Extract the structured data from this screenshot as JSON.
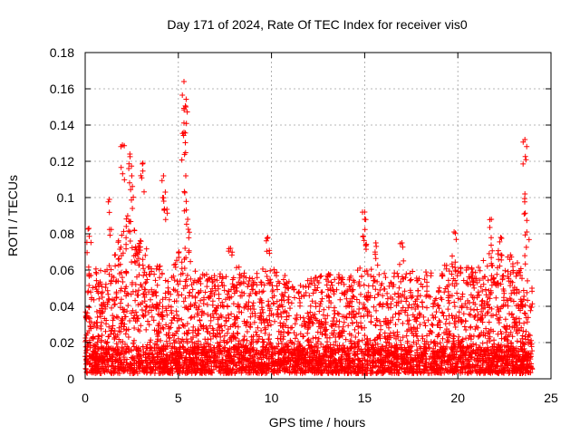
{
  "chart_data": {
    "type": "scatter",
    "title": "Day 171 of 2024, Rate Of TEC Index for receiver vis0",
    "xlabel": "GPS time / hours",
    "ylabel": "ROTI / TECUs",
    "xlim": [
      0,
      25
    ],
    "ylim": [
      0,
      0.18
    ],
    "x_ticks": [
      0,
      5,
      10,
      15,
      20,
      25
    ],
    "x_tick_labels": [
      "0",
      "5",
      "10",
      "15",
      "20",
      "25"
    ],
    "y_ticks": [
      0,
      0.02,
      0.04,
      0.06,
      0.08,
      0.1,
      0.12,
      0.14,
      0.16,
      0.18
    ],
    "y_tick_labels": [
      "0",
      "0.02",
      "0.04",
      "0.06",
      "0.08",
      "0.1",
      "0.12",
      "0.14",
      "0.16",
      "0.18"
    ],
    "grid": true,
    "marker": "+",
    "color": "#ff0000",
    "data_x_range": [
      0,
      24
    ],
    "series": [
      {
        "name": "ROTI",
        "notable_points": [
          {
            "x": 0.2,
            "y": 0.083
          },
          {
            "x": 1.3,
            "y": 0.099
          },
          {
            "x": 2.0,
            "y": 0.129
          },
          {
            "x": 2.4,
            "y": 0.124
          },
          {
            "x": 2.5,
            "y": 0.112
          },
          {
            "x": 3.1,
            "y": 0.119
          },
          {
            "x": 4.2,
            "y": 0.112
          },
          {
            "x": 4.3,
            "y": 0.103
          },
          {
            "x": 5.3,
            "y": 0.164
          },
          {
            "x": 5.4,
            "y": 0.15
          },
          {
            "x": 5.3,
            "y": 0.136
          },
          {
            "x": 5.4,
            "y": 0.112
          },
          {
            "x": 5.5,
            "y": 0.088
          },
          {
            "x": 7.8,
            "y": 0.072
          },
          {
            "x": 9.8,
            "y": 0.078
          },
          {
            "x": 15.0,
            "y": 0.092
          },
          {
            "x": 15.0,
            "y": 0.088
          },
          {
            "x": 15.6,
            "y": 0.075
          },
          {
            "x": 17.0,
            "y": 0.075
          },
          {
            "x": 19.8,
            "y": 0.081
          },
          {
            "x": 21.8,
            "y": 0.088
          },
          {
            "x": 22.3,
            "y": 0.078
          },
          {
            "x": 23.6,
            "y": 0.132
          },
          {
            "x": 23.6,
            "y": 0.102
          },
          {
            "x": 23.7,
            "y": 0.081
          }
        ],
        "envelope": [
          {
            "x": 0,
            "upper": 0.06
          },
          {
            "x": 0.5,
            "upper": 0.06
          },
          {
            "x": 1,
            "upper": 0.055
          },
          {
            "x": 1.5,
            "upper": 0.065
          },
          {
            "x": 2,
            "upper": 0.085
          },
          {
            "x": 2.5,
            "upper": 0.095
          },
          {
            "x": 3,
            "upper": 0.075
          },
          {
            "x": 3.5,
            "upper": 0.065
          },
          {
            "x": 4,
            "upper": 0.06
          },
          {
            "x": 4.5,
            "upper": 0.05
          },
          {
            "x": 5,
            "upper": 0.07
          },
          {
            "x": 5.5,
            "upper": 0.07
          },
          {
            "x": 6,
            "upper": 0.055
          },
          {
            "x": 7,
            "upper": 0.055
          },
          {
            "x": 8,
            "upper": 0.06
          },
          {
            "x": 9,
            "upper": 0.055
          },
          {
            "x": 10,
            "upper": 0.06
          },
          {
            "x": 11,
            "upper": 0.052
          },
          {
            "x": 12,
            "upper": 0.052
          },
          {
            "x": 13,
            "upper": 0.055
          },
          {
            "x": 14,
            "upper": 0.055
          },
          {
            "x": 15,
            "upper": 0.06
          },
          {
            "x": 16,
            "upper": 0.055
          },
          {
            "x": 17,
            "upper": 0.058
          },
          {
            "x": 18,
            "upper": 0.055
          },
          {
            "x": 19,
            "upper": 0.06
          },
          {
            "x": 20,
            "upper": 0.06
          },
          {
            "x": 21,
            "upper": 0.058
          },
          {
            "x": 22,
            "upper": 0.07
          },
          {
            "x": 23,
            "upper": 0.065
          },
          {
            "x": 24,
            "upper": 0.05
          }
        ]
      }
    ]
  }
}
